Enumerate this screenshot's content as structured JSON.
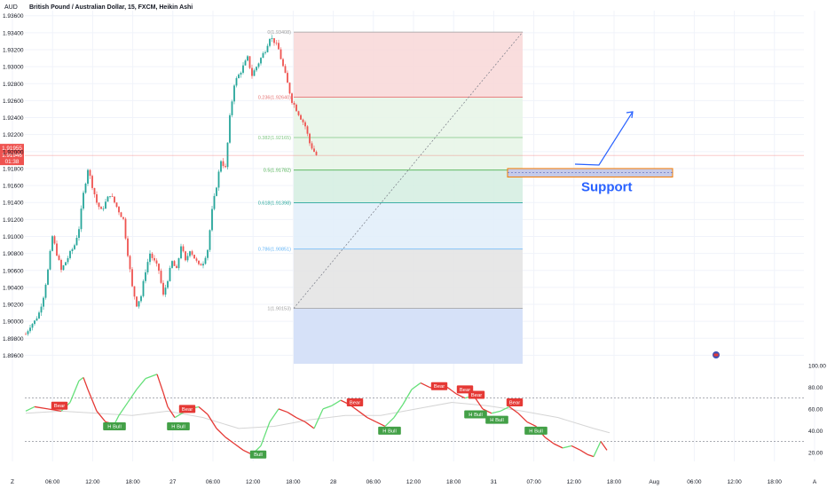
{
  "header": {
    "currency": "AUD",
    "title": "British Pound / Australian Dollar, 15, FXCM, Heikin Ashi"
  },
  "colors": {
    "up": "#26a69a",
    "down": "#ef5350",
    "grid": "#f0f3fa",
    "axis_text": "#131722",
    "arrow": "#2962ff",
    "support_fill": "#c5cae9",
    "support_border": "#f57c00",
    "fib_red": "#f8d7d7",
    "fib_green1": "#e6f4e6",
    "fib_green2": "#d4ede0",
    "fib_blue1": "#e1edf9",
    "fib_gray": "#e3e3e3",
    "fib_blue2": "#d6e1f8",
    "osc_fast_up": "#66e07a",
    "osc_fast_down": "#e53935",
    "osc_slow": "#d5d5d5"
  },
  "chart_data": {
    "type": "candlestick",
    "title": "British Pound / Australian Dollar, 15, FXCM, Heikin Ashi",
    "ylim": [
      1.895,
      1.9366
    ],
    "price_ticks": [
      "1.93600",
      "1.93400",
      "1.93200",
      "1.93000",
      "1.92800",
      "1.92600",
      "1.92400",
      "1.92200",
      "1.92000",
      "1.91800",
      "1.91600",
      "1.91400",
      "1.91200",
      "1.91000",
      "1.90800",
      "1.90600",
      "1.90400",
      "1.90200",
      "1.90000",
      "1.89800",
      "1.89600"
    ],
    "current_price_label": "1.91955",
    "current_price_label2": "1.91946",
    "countdown_label": "01:38",
    "time_labels": [
      "Z",
      "06:00",
      "12:00",
      "18:00",
      "27",
      "06:00",
      "12:00",
      "18:00",
      "28",
      "06:00",
      "12:00",
      "18:00",
      "31",
      "07:00",
      "12:00",
      "18:00",
      "Aug",
      "06:00",
      "12:00",
      "18:00",
      "A"
    ],
    "price_path": [
      [
        0,
        1.8985
      ],
      [
        5,
        1.8995
      ],
      [
        10,
        1.9
      ],
      [
        15,
        1.901
      ],
      [
        20,
        1.903
      ],
      [
        25,
        1.906
      ],
      [
        30,
        1.91
      ],
      [
        35,
        1.908
      ],
      [
        40,
        1.906
      ],
      [
        45,
        1.907
      ],
      [
        50,
        1.908
      ],
      [
        55,
        1.909
      ],
      [
        60,
        1.911
      ],
      [
        65,
        1.915
      ],
      [
        70,
        1.918
      ],
      [
        75,
        1.916
      ],
      [
        80,
        1.914
      ],
      [
        85,
        1.913
      ],
      [
        90,
        1.914
      ],
      [
        95,
        1.915
      ],
      [
        100,
        1.914
      ],
      [
        105,
        1.913
      ],
      [
        110,
        1.912
      ],
      [
        115,
        1.908
      ],
      [
        120,
        1.904
      ],
      [
        125,
        1.902
      ],
      [
        130,
        1.903
      ],
      [
        135,
        1.906
      ],
      [
        140,
        1.908
      ],
      [
        145,
        1.907
      ],
      [
        150,
        1.906
      ],
      [
        155,
        1.903
      ],
      [
        160,
        1.905
      ],
      [
        165,
        1.907
      ],
      [
        170,
        1.906
      ],
      [
        175,
        1.909
      ],
      [
        180,
        1.907
      ],
      [
        185,
        1.9085
      ],
      [
        190,
        1.9075
      ],
      [
        195,
        1.9065
      ],
      [
        200,
        1.907
      ],
      [
        205,
        1.9085
      ],
      [
        210,
        1.913
      ],
      [
        215,
        1.916
      ],
      [
        220,
        1.919
      ],
      [
        225,
        1.918
      ],
      [
        230,
        1.924
      ],
      [
        235,
        1.928
      ],
      [
        240,
        1.929
      ],
      [
        245,
        1.93
      ],
      [
        250,
        1.931
      ],
      [
        255,
        1.929
      ],
      [
        260,
        1.93
      ],
      [
        265,
        1.931
      ],
      [
        270,
        1.932
      ],
      [
        275,
        1.9335
      ],
      [
        280,
        1.933
      ],
      [
        285,
        1.932
      ],
      [
        290,
        1.93
      ],
      [
        295,
        1.928
      ],
      [
        300,
        1.926
      ],
      [
        305,
        1.925
      ],
      [
        310,
        1.924
      ],
      [
        315,
        1.923
      ],
      [
        320,
        1.921
      ],
      [
        325,
        1.92
      ],
      [
        328,
        1.9195
      ]
    ],
    "fibonacci": {
      "levels": [
        {
          "ratio": "0",
          "price": 1.93408,
          "label": "0(1.93408)"
        },
        {
          "ratio": "0.236",
          "price": 1.9264,
          "label": "0.236(1.92640)"
        },
        {
          "ratio": "0.382",
          "price": 1.92165,
          "label": "0.382(1.92165)"
        },
        {
          "ratio": "0.5",
          "price": 1.91782,
          "label": "0.5(1.91782)"
        },
        {
          "ratio": "0.618",
          "price": 1.91398,
          "label": "0.618(1.91398)"
        },
        {
          "ratio": "0.786",
          "price": 1.90851,
          "label": "0.786(1.90851)"
        },
        {
          "ratio": "1",
          "price": 1.90153,
          "label": "1(1.90153)"
        }
      ]
    },
    "support": {
      "label": "Support",
      "top": 1.918,
      "bottom": 1.917
    },
    "oscillator": {
      "ticks": [
        "100.00",
        "80.00",
        "60.00",
        "40.00",
        "20.00"
      ],
      "ylim": [
        10,
        100
      ],
      "overbought": 70,
      "oversold": 30,
      "signals": [
        {
          "label": "Bear",
          "x": 38,
          "v": 63
        },
        {
          "label": "H Bull",
          "x": 100,
          "v": 44
        },
        {
          "label": "H Bull",
          "x": 172,
          "v": 44
        },
        {
          "label": "Bear",
          "x": 182,
          "v": 60
        },
        {
          "label": "Bull",
          "x": 262,
          "v": 18
        },
        {
          "label": "Bear",
          "x": 371,
          "v": 66
        },
        {
          "label": "H Bull",
          "x": 410,
          "v": 40
        },
        {
          "label": "Bear",
          "x": 466,
          "v": 81
        },
        {
          "label": "Bear",
          "x": 495,
          "v": 78
        },
        {
          "label": "Bear",
          "x": 508,
          "v": 73
        },
        {
          "label": "H Bull",
          "x": 507,
          "v": 55
        },
        {
          "label": "H Bull",
          "x": 531,
          "v": 50
        },
        {
          "label": "Bear",
          "x": 551,
          "v": 66
        },
        {
          "label": "H Bull",
          "x": 575,
          "v": 40
        }
      ],
      "fast": [
        [
          0,
          58
        ],
        [
          10,
          62
        ],
        [
          25,
          60
        ],
        [
          40,
          58
        ],
        [
          50,
          66
        ],
        [
          60,
          86
        ],
        [
          65,
          89
        ],
        [
          70,
          78
        ],
        [
          80,
          58
        ],
        [
          90,
          48
        ],
        [
          100,
          46
        ],
        [
          105,
          54
        ],
        [
          115,
          66
        ],
        [
          125,
          78
        ],
        [
          135,
          88
        ],
        [
          148,
          92
        ],
        [
          155,
          75
        ],
        [
          160,
          62
        ],
        [
          168,
          52
        ],
        [
          176,
          56
        ],
        [
          185,
          60
        ],
        [
          195,
          62
        ],
        [
          205,
          55
        ],
        [
          215,
          42
        ],
        [
          225,
          34
        ],
        [
          235,
          28
        ],
        [
          245,
          22
        ],
        [
          255,
          18
        ],
        [
          265,
          26
        ],
        [
          275,
          48
        ],
        [
          285,
          60
        ],
        [
          295,
          57
        ],
        [
          305,
          52
        ],
        [
          315,
          48
        ],
        [
          325,
          42
        ],
        [
          335,
          60
        ],
        [
          345,
          63
        ],
        [
          355,
          68
        ],
        [
          365,
          64
        ],
        [
          375,
          58
        ],
        [
          385,
          52
        ],
        [
          395,
          48
        ],
        [
          405,
          44
        ],
        [
          415,
          52
        ],
        [
          425,
          64
        ],
        [
          435,
          78
        ],
        [
          445,
          84
        ],
        [
          455,
          80
        ],
        [
          465,
          78
        ],
        [
          475,
          80
        ],
        [
          485,
          74
        ],
        [
          495,
          70
        ],
        [
          505,
          72
        ],
        [
          515,
          60
        ],
        [
          525,
          56
        ],
        [
          535,
          58
        ],
        [
          545,
          62
        ],
        [
          555,
          56
        ],
        [
          565,
          48
        ],
        [
          575,
          44
        ],
        [
          585,
          34
        ],
        [
          595,
          28
        ],
        [
          605,
          24
        ],
        [
          615,
          26
        ],
        [
          625,
          22
        ],
        [
          633,
          18
        ],
        [
          640,
          16
        ],
        [
          648,
          30
        ],
        [
          655,
          22
        ]
      ],
      "slow": [
        [
          0,
          56
        ],
        [
          40,
          58
        ],
        [
          80,
          56
        ],
        [
          120,
          54
        ],
        [
          160,
          58
        ],
        [
          200,
          52
        ],
        [
          240,
          42
        ],
        [
          280,
          44
        ],
        [
          320,
          50
        ],
        [
          360,
          54
        ],
        [
          400,
          54
        ],
        [
          440,
          60
        ],
        [
          480,
          66
        ],
        [
          520,
          63
        ],
        [
          560,
          58
        ],
        [
          600,
          52
        ],
        [
          640,
          42
        ],
        [
          658,
          38
        ]
      ]
    },
    "projection_arrow": [
      [
        648,
        185
      ],
      [
        675,
        186
      ],
      [
        713,
        126
      ]
    ]
  }
}
